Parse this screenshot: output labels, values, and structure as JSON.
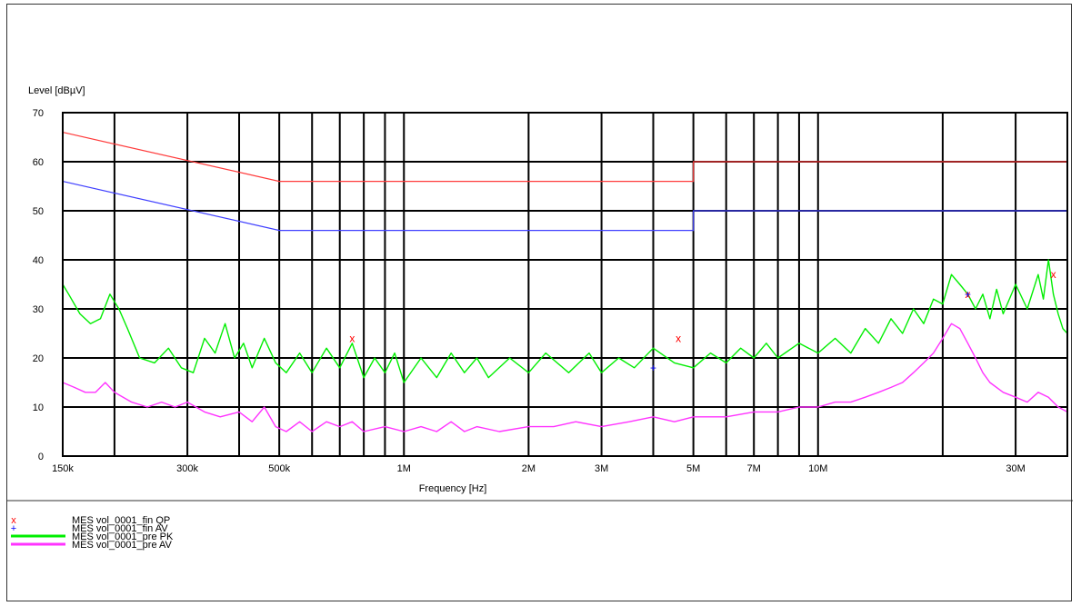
{
  "chart_data": {
    "type": "line",
    "xlabel": "Frequency [Hz]",
    "ylabel": "Level [dBµV]",
    "x_scale": "log",
    "xlim": [
      150000,
      40000000
    ],
    "ylim": [
      0,
      70
    ],
    "y_ticks": [
      0,
      10,
      20,
      30,
      40,
      50,
      60,
      70
    ],
    "x_tick_labels": [
      {
        "value": 150000,
        "label": "150k"
      },
      {
        "value": 300000,
        "label": "300k"
      },
      {
        "value": 500000,
        "label": "500k"
      },
      {
        "value": 1000000,
        "label": "1M"
      },
      {
        "value": 2000000,
        "label": "2M"
      },
      {
        "value": 3000000,
        "label": "3M"
      },
      {
        "value": 5000000,
        "label": "5M"
      },
      {
        "value": 7000000,
        "label": "7M"
      },
      {
        "value": 10000000,
        "label": "10M"
      },
      {
        "value": 30000000,
        "label": "30M"
      }
    ],
    "x_gridlines": [
      200000,
      300000,
      400000,
      500000,
      600000,
      700000,
      800000,
      900000,
      1000000,
      2000000,
      3000000,
      4000000,
      5000000,
      6000000,
      7000000,
      8000000,
      9000000,
      10000000,
      20000000,
      30000000
    ],
    "grid": true,
    "limit_lines": [
      {
        "color": "#ff3b3b",
        "points": [
          [
            150000,
            66
          ],
          [
            500000,
            56
          ],
          [
            5000000,
            56
          ],
          [
            5000000,
            60
          ],
          [
            40000000,
            60
          ]
        ]
      },
      {
        "color": "#4040ff",
        "points": [
          [
            150000,
            56
          ],
          [
            500000,
            46
          ],
          [
            5000000,
            46
          ],
          [
            5000000,
            50
          ],
          [
            40000000,
            50
          ]
        ]
      }
    ],
    "series": [
      {
        "name": "MES  vol_0001_pre PK",
        "color": "#00ee00",
        "points": [
          [
            150000,
            35
          ],
          [
            155000,
            33
          ],
          [
            165000,
            29
          ],
          [
            175000,
            27
          ],
          [
            185000,
            28
          ],
          [
            195000,
            33
          ],
          [
            205000,
            30
          ],
          [
            215000,
            26
          ],
          [
            230000,
            20
          ],
          [
            250000,
            19
          ],
          [
            270000,
            22
          ],
          [
            290000,
            18
          ],
          [
            310000,
            17
          ],
          [
            330000,
            24
          ],
          [
            350000,
            21
          ],
          [
            370000,
            27
          ],
          [
            390000,
            20
          ],
          [
            410000,
            23
          ],
          [
            430000,
            18
          ],
          [
            460000,
            24
          ],
          [
            490000,
            19
          ],
          [
            520000,
            17
          ],
          [
            560000,
            21
          ],
          [
            600000,
            17
          ],
          [
            650000,
            22
          ],
          [
            700000,
            18
          ],
          [
            750000,
            23
          ],
          [
            800000,
            16
          ],
          [
            850000,
            20
          ],
          [
            900000,
            17
          ],
          [
            950000,
            21
          ],
          [
            1000000,
            15
          ],
          [
            1100000,
            20
          ],
          [
            1200000,
            16
          ],
          [
            1300000,
            21
          ],
          [
            1400000,
            17
          ],
          [
            1500000,
            20
          ],
          [
            1600000,
            16
          ],
          [
            1800000,
            20
          ],
          [
            2000000,
            17
          ],
          [
            2200000,
            21
          ],
          [
            2500000,
            17
          ],
          [
            2800000,
            21
          ],
          [
            3000000,
            17
          ],
          [
            3300000,
            20
          ],
          [
            3600000,
            18
          ],
          [
            4000000,
            22
          ],
          [
            4500000,
            19
          ],
          [
            5000000,
            18
          ],
          [
            5500000,
            21
          ],
          [
            6000000,
            19
          ],
          [
            6500000,
            22
          ],
          [
            7000000,
            20
          ],
          [
            7500000,
            23
          ],
          [
            8000000,
            20
          ],
          [
            9000000,
            23
          ],
          [
            10000000,
            21
          ],
          [
            11000000,
            24
          ],
          [
            12000000,
            21
          ],
          [
            13000000,
            26
          ],
          [
            14000000,
            23
          ],
          [
            15000000,
            28
          ],
          [
            16000000,
            25
          ],
          [
            17000000,
            30
          ],
          [
            18000000,
            27
          ],
          [
            19000000,
            32
          ],
          [
            20000000,
            31
          ],
          [
            21000000,
            37
          ],
          [
            22000000,
            35
          ],
          [
            23000000,
            33
          ],
          [
            24000000,
            30
          ],
          [
            25000000,
            33
          ],
          [
            26000000,
            28
          ],
          [
            27000000,
            34
          ],
          [
            28000000,
            29
          ],
          [
            30000000,
            35
          ],
          [
            32000000,
            30
          ],
          [
            34000000,
            37
          ],
          [
            35000000,
            32
          ],
          [
            36000000,
            40
          ],
          [
            37000000,
            33
          ],
          [
            38000000,
            29
          ],
          [
            39000000,
            26
          ],
          [
            40000000,
            25
          ]
        ]
      },
      {
        "name": "MES  vol_0001_pre AV",
        "color": "#ff33ff",
        "points": [
          [
            150000,
            15
          ],
          [
            160000,
            14
          ],
          [
            170000,
            13
          ],
          [
            180000,
            13
          ],
          [
            190000,
            15
          ],
          [
            200000,
            13
          ],
          [
            220000,
            11
          ],
          [
            240000,
            10
          ],
          [
            260000,
            11
          ],
          [
            280000,
            10
          ],
          [
            300000,
            11
          ],
          [
            330000,
            9
          ],
          [
            360000,
            8
          ],
          [
            400000,
            9
          ],
          [
            430000,
            7
          ],
          [
            460000,
            10
          ],
          [
            490000,
            6
          ],
          [
            520000,
            5
          ],
          [
            560000,
            7
          ],
          [
            600000,
            5
          ],
          [
            650000,
            7
          ],
          [
            700000,
            6
          ],
          [
            750000,
            7
          ],
          [
            800000,
            5
          ],
          [
            900000,
            6
          ],
          [
            1000000,
            5
          ],
          [
            1100000,
            6
          ],
          [
            1200000,
            5
          ],
          [
            1300000,
            7
          ],
          [
            1400000,
            5
          ],
          [
            1500000,
            6
          ],
          [
            1700000,
            5
          ],
          [
            2000000,
            6
          ],
          [
            2300000,
            6
          ],
          [
            2600000,
            7
          ],
          [
            3000000,
            6
          ],
          [
            3500000,
            7
          ],
          [
            4000000,
            8
          ],
          [
            4500000,
            7
          ],
          [
            5000000,
            8
          ],
          [
            6000000,
            8
          ],
          [
            7000000,
            9
          ],
          [
            8000000,
            9
          ],
          [
            9000000,
            10
          ],
          [
            10000000,
            10
          ],
          [
            11000000,
            11
          ],
          [
            12000000,
            11
          ],
          [
            13000000,
            12
          ],
          [
            14000000,
            13
          ],
          [
            15000000,
            14
          ],
          [
            16000000,
            15
          ],
          [
            17000000,
            17
          ],
          [
            18000000,
            19
          ],
          [
            19000000,
            21
          ],
          [
            20000000,
            24
          ],
          [
            21000000,
            27
          ],
          [
            22000000,
            26
          ],
          [
            23000000,
            23
          ],
          [
            24000000,
            20
          ],
          [
            25000000,
            17
          ],
          [
            26000000,
            15
          ],
          [
            28000000,
            13
          ],
          [
            30000000,
            12
          ],
          [
            32000000,
            11
          ],
          [
            34000000,
            13
          ],
          [
            36000000,
            12
          ],
          [
            38000000,
            10
          ],
          [
            40000000,
            9
          ]
        ]
      }
    ],
    "markers": [
      {
        "name": "MES  vol_0001_fin QP",
        "symbol": "x",
        "color": "#ff0000",
        "points": [
          [
            750000,
            24
          ],
          [
            4600000,
            24
          ],
          [
            23000000,
            33
          ],
          [
            37000000,
            37
          ]
        ]
      },
      {
        "name": "MES  vol_0001_fin AV",
        "symbol": "+",
        "color": "#0000ff",
        "points": [
          [
            4000000,
            18
          ],
          [
            23000000,
            33
          ]
        ]
      }
    ],
    "legend": {
      "placement": "bottom-left",
      "entries": [
        {
          "label": "MES  vol_0001_fin QP",
          "kind": "marker",
          "symbol": "x",
          "color": "#ff0000"
        },
        {
          "label": "MES  vol_0001_fin AV",
          "kind": "marker",
          "symbol": "+",
          "color": "#0000ff"
        },
        {
          "label": "MES  vol_0001_pre PK",
          "kind": "line",
          "color": "#00ee00"
        },
        {
          "label": "MES  vol_0001_pre AV",
          "kind": "line",
          "color": "#ff33ff"
        }
      ]
    }
  }
}
